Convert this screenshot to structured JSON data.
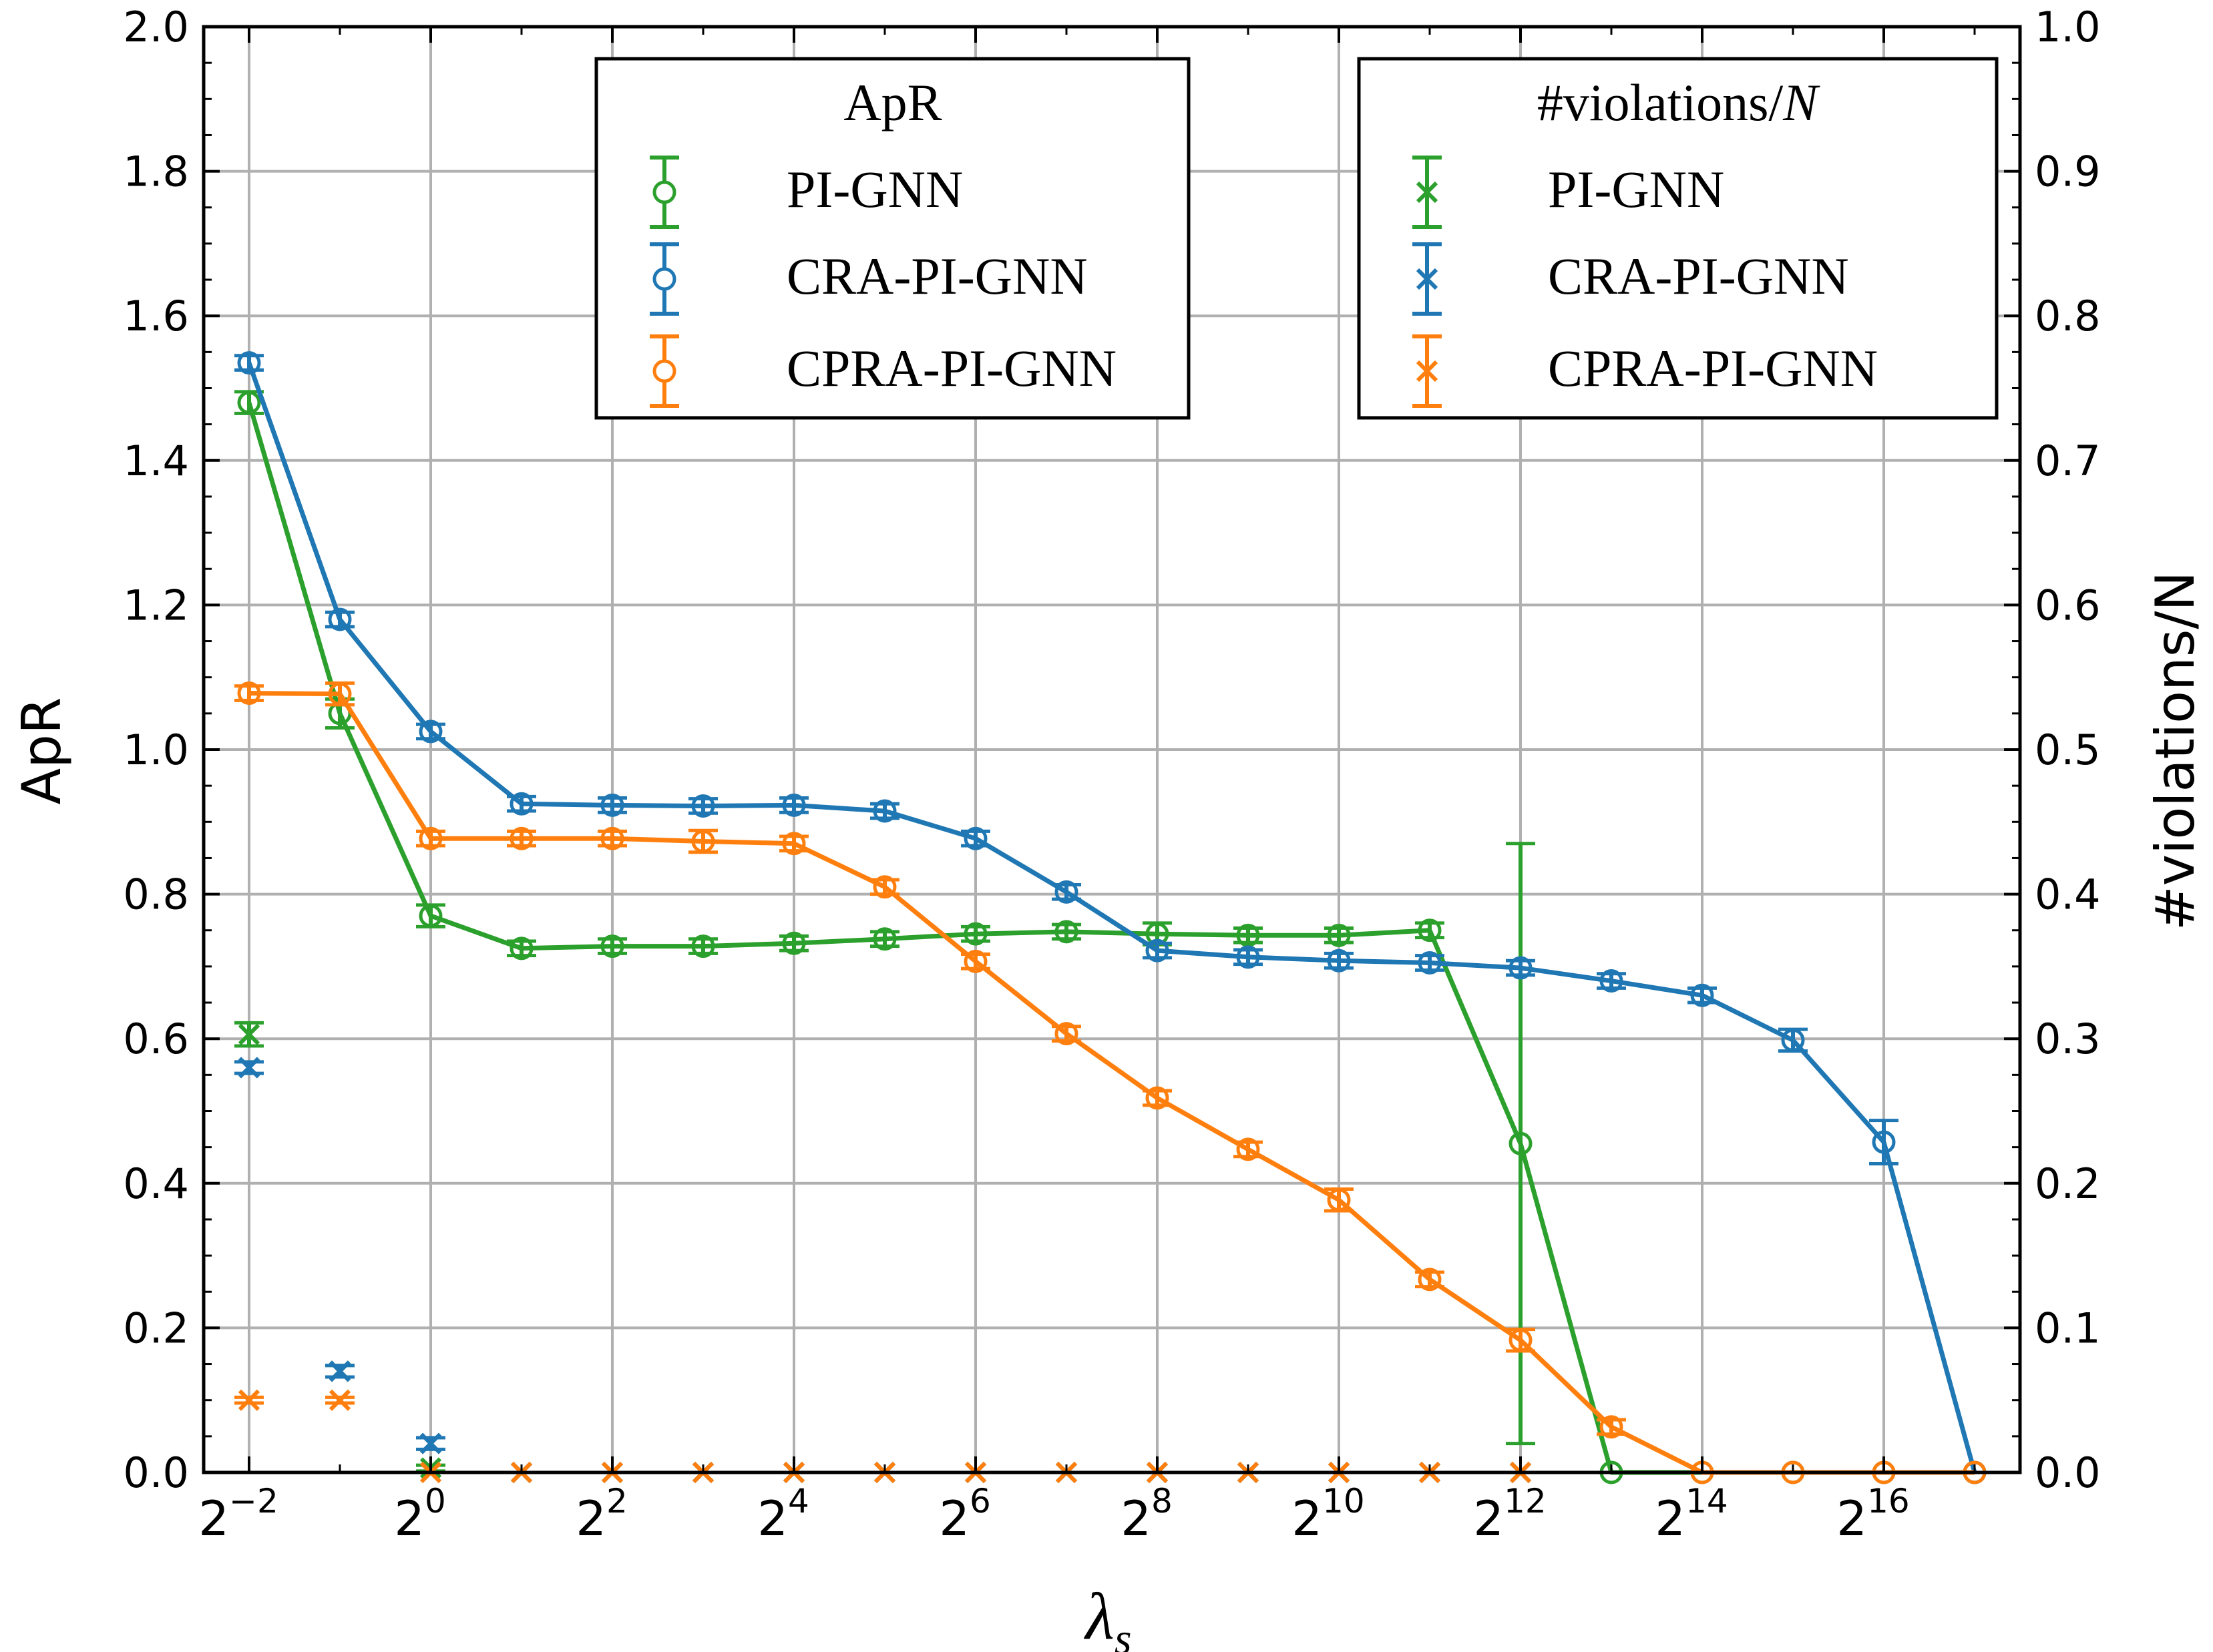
{
  "chart_data": {
    "type": "line",
    "x_label": "λ",
    "x_label_subscript": "s",
    "y_label_left": "ApR",
    "y_label_right": "#violations/N",
    "x_exponents": [
      -2,
      -1,
      0,
      1,
      2,
      3,
      4,
      5,
      6,
      7,
      8,
      9,
      10,
      11,
      12,
      13,
      14,
      15,
      16,
      17
    ],
    "x_tick_exponents": [
      -2,
      0,
      2,
      4,
      6,
      8,
      10,
      12,
      14,
      16
    ],
    "x_tick_labels": [
      "2",
      "2",
      "2",
      "2",
      "2",
      "2",
      "2",
      "2",
      "2",
      "2"
    ],
    "x_tick_superscripts": [
      "−2",
      "0",
      "2",
      "4",
      "6",
      "8",
      "10",
      "12",
      "14",
      "16"
    ],
    "xlim_exponent": [
      -2.5,
      17.5
    ],
    "ylim_left": [
      0.0,
      2.0
    ],
    "ylim_right": [
      0.0,
      1.0
    ],
    "y_ticks_left": [
      "0.0",
      "0.2",
      "0.4",
      "0.6",
      "0.8",
      "1.0",
      "1.2",
      "1.4",
      "1.6",
      "1.8",
      "2.0"
    ],
    "y_ticks_right": [
      "0.0",
      "0.1",
      "0.2",
      "0.3",
      "0.4",
      "0.5",
      "0.6",
      "0.7",
      "0.8",
      "0.9",
      "1.0"
    ],
    "grid": true,
    "colors": {
      "PI-GNN": "#2ca02c",
      "CRA-PI-GNN": "#1f77b4",
      "CPRA-PI-GNN": "#ff7f0e"
    },
    "apr_series": [
      {
        "name": "PI-GNN",
        "x_exp": [
          -2,
          -1,
          0,
          1,
          2,
          3,
          4,
          5,
          6,
          7,
          8,
          9,
          10,
          11,
          12,
          13,
          14,
          15,
          16,
          17
        ],
        "values": [
          1.48,
          1.05,
          0.77,
          0.725,
          0.728,
          0.728,
          0.732,
          0.738,
          0.745,
          0.748,
          0.745,
          0.743,
          0.743,
          0.75,
          0.455,
          0.0,
          0.0,
          0.0,
          0.0,
          0.0
        ],
        "errors": [
          0.015,
          0.02,
          0.015,
          0.01,
          0.01,
          0.01,
          0.01,
          0.01,
          0.01,
          0.01,
          0.015,
          0.01,
          0.01,
          0.01,
          0.415,
          0.0,
          0.0,
          0.0,
          0.0,
          0.0
        ]
      },
      {
        "name": "CRA-PI-GNN",
        "x_exp": [
          -2,
          -1,
          0,
          1,
          2,
          3,
          4,
          5,
          6,
          7,
          8,
          9,
          10,
          11,
          12,
          13,
          14,
          15,
          16,
          17
        ],
        "values": [
          1.535,
          1.18,
          1.025,
          0.925,
          0.923,
          0.922,
          0.923,
          0.915,
          0.877,
          0.803,
          0.722,
          0.713,
          0.708,
          0.705,
          0.698,
          0.68,
          0.66,
          0.598,
          0.457,
          0.0
        ],
        "errors": [
          0.01,
          0.01,
          0.01,
          0.01,
          0.01,
          0.01,
          0.01,
          0.01,
          0.01,
          0.01,
          0.01,
          0.01,
          0.01,
          0.01,
          0.01,
          0.01,
          0.01,
          0.015,
          0.03,
          0.0
        ]
      },
      {
        "name": "CPRA-PI-GNN",
        "x_exp": [
          -2,
          -1,
          0,
          1,
          2,
          3,
          4,
          5,
          6,
          7,
          8,
          9,
          10,
          11,
          12,
          13,
          14,
          15,
          16,
          17
        ],
        "values": [
          1.078,
          1.077,
          0.877,
          0.877,
          0.877,
          0.873,
          0.87,
          0.81,
          0.707,
          0.607,
          0.518,
          0.447,
          0.377,
          0.267,
          0.183,
          0.063,
          0.0,
          0.0,
          0.0,
          0.0
        ],
        "errors": [
          0.01,
          0.015,
          0.01,
          0.01,
          0.01,
          0.015,
          0.01,
          0.01,
          0.01,
          0.01,
          0.01,
          0.01,
          0.015,
          0.01,
          0.015,
          0.01,
          0.0,
          0.0,
          0.0,
          0.0
        ]
      }
    ],
    "violation_series": [
      {
        "name": "PI-GNN",
        "x_exp": [
          -2,
          -1,
          0,
          1,
          2,
          3,
          4,
          5,
          6,
          7,
          8,
          9,
          10,
          11,
          12
        ],
        "values": [
          0.303,
          0.07,
          0.003,
          0.0,
          0.0,
          0.0,
          0.0,
          0.0,
          0.0,
          0.0,
          0.0,
          0.0,
          0.0,
          0.0,
          0.0
        ],
        "errors": [
          0.008,
          0.004,
          0.002,
          0,
          0,
          0,
          0,
          0,
          0,
          0,
          0,
          0,
          0,
          0,
          0
        ]
      },
      {
        "name": "CRA-PI-GNN",
        "x_exp": [
          -2,
          -1,
          0,
          1,
          2,
          3,
          4,
          5,
          6,
          7,
          8,
          9,
          10,
          11,
          12
        ],
        "values": [
          0.28,
          0.07,
          0.02,
          0.0,
          0.0,
          0.0,
          0.0,
          0.0,
          0.0,
          0.0,
          0.0,
          0.0,
          0.0,
          0.0,
          0.0
        ],
        "errors": [
          0.004,
          0.004,
          0.004,
          0,
          0,
          0,
          0,
          0,
          0,
          0,
          0,
          0,
          0,
          0,
          0
        ]
      },
      {
        "name": "CPRA-PI-GNN",
        "x_exp": [
          -2,
          -1,
          0,
          1,
          2,
          3,
          4,
          5,
          6,
          7,
          8,
          9,
          10,
          11,
          12
        ],
        "values": [
          0.05,
          0.05,
          0.0,
          0.0,
          0.0,
          0.0,
          0.0,
          0.0,
          0.0,
          0.0,
          0.0,
          0.0,
          0.0,
          0.0,
          0.0
        ],
        "errors": [
          0.002,
          0.002,
          0,
          0,
          0,
          0,
          0,
          0,
          0,
          0,
          0,
          0,
          0,
          0,
          0
        ]
      }
    ],
    "legend_apr": {
      "title": "ApR",
      "location": "upper-center",
      "entries": [
        "PI-GNN",
        "CRA-PI-GNN",
        "CPRA-PI-GNN"
      ]
    },
    "legend_violations": {
      "title_prefix": "#violations/",
      "title_italic": "N",
      "location": "upper-right",
      "entries": [
        "PI-GNN",
        "CRA-PI-GNN",
        "CPRA-PI-GNN"
      ]
    }
  }
}
